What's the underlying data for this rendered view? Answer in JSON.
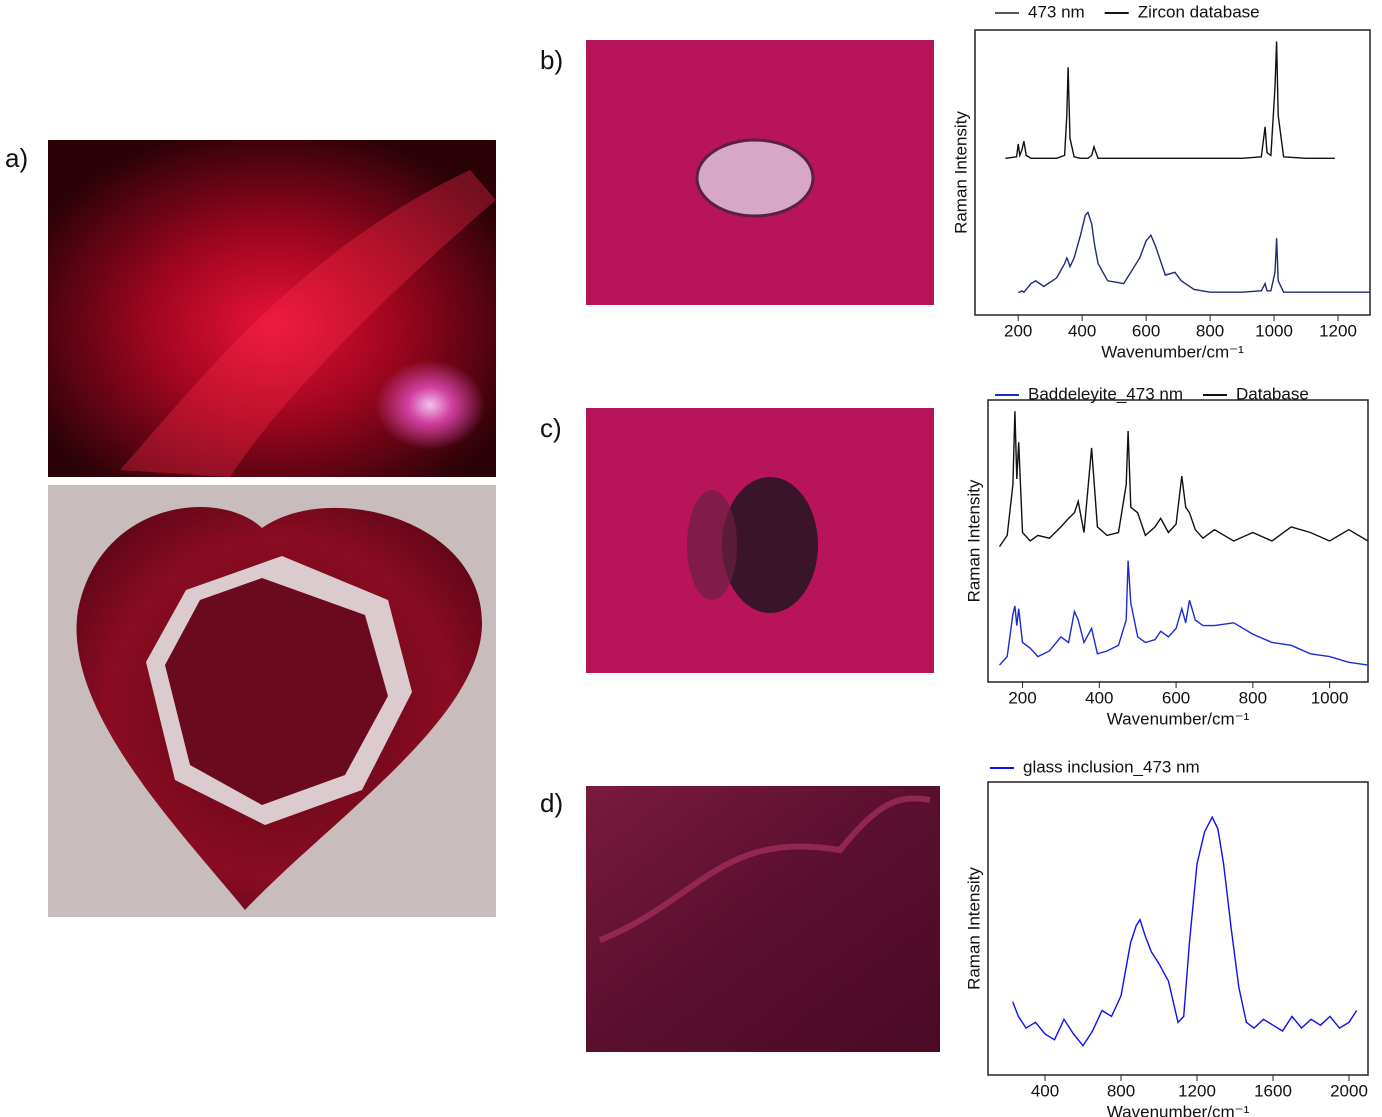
{
  "panel_labels": [
    "a)",
    "b)",
    "c)",
    "d)"
  ],
  "chart_data": [
    {
      "type": "line",
      "x_label": "Wavenumber/cm⁻¹",
      "y_label": "Raman Intensity",
      "xlim": [
        65,
        1300
      ],
      "ylim": [
        0,
        100
      ],
      "xticks": [
        200,
        400,
        600,
        800,
        1000,
        1200
      ],
      "x": [
        160,
        195,
        200,
        205,
        212,
        218,
        225,
        240,
        255,
        280,
        320,
        345,
        352,
        356,
        362,
        375,
        395,
        410,
        418,
        430,
        437,
        440,
        450,
        480,
        530,
        580,
        600,
        615,
        630,
        660,
        690,
        710,
        750,
        800,
        900,
        960,
        972,
        978,
        990,
        1003,
        1008,
        1013,
        1030,
        1100,
        1190,
        1250,
        1300
      ],
      "series": [
        {
          "name": "473 nm",
          "color": "#1f2a7a",
          "legend_color": "#555555",
          "values": [
            null,
            null,
            8,
            8,
            8.5,
            8,
            9,
            11,
            12,
            10,
            13,
            18,
            20,
            19,
            17,
            20,
            28,
            35,
            36,
            32,
            26,
            24,
            18,
            12,
            11,
            20,
            26,
            28,
            24,
            14,
            15,
            12,
            9,
            8,
            8,
            8.5,
            11,
            8.5,
            8.5,
            15,
            27,
            12,
            8,
            8,
            8,
            8,
            8
          ]
        },
        {
          "name": "Zircon database",
          "color": "#111111",
          "values": [
            55,
            55.5,
            60,
            56,
            58,
            61,
            56,
            55,
            55,
            55,
            55,
            56,
            70,
            87,
            62,
            55.5,
            55,
            55,
            55,
            56,
            59,
            58,
            55,
            55,
            55,
            55,
            55,
            55,
            55,
            55,
            55,
            55,
            55,
            55,
            55,
            55.5,
            66,
            57,
            56,
            80,
            96,
            70,
            55.5,
            55,
            55,
            null,
            null
          ]
        }
      ]
    },
    {
      "type": "line",
      "x_label": "Wavenumber/cm⁻¹",
      "y_label": "Raman Intensity",
      "xlim": [
        110,
        1100
      ],
      "ylim": [
        0,
        100
      ],
      "xticks": [
        200,
        400,
        600,
        800,
        1000
      ],
      "x": [
        140,
        160,
        175,
        180,
        185,
        190,
        200,
        220,
        240,
        270,
        300,
        320,
        335,
        345,
        360,
        380,
        395,
        420,
        450,
        470,
        475,
        482,
        500,
        520,
        545,
        560,
        580,
        600,
        615,
        625,
        635,
        650,
        670,
        700,
        750,
        800,
        850,
        900,
        950,
        1000,
        1050,
        1100
      ],
      "series": [
        {
          "name": "Baddeleyite_473 nm",
          "color": "#1a2bd6",
          "values": [
            6,
            9,
            24,
            27,
            20,
            26,
            14,
            12,
            9,
            11,
            16,
            14,
            25,
            22,
            14,
            19,
            10,
            11,
            13,
            22,
            43,
            28,
            16,
            14,
            15,
            18,
            16,
            19,
            26,
            21,
            29,
            22,
            20,
            20,
            21,
            17,
            14,
            13,
            10,
            9,
            7,
            6
          ]
        },
        {
          "name": "Database",
          "color": "#111111",
          "values": [
            48,
            52,
            70,
            96,
            72,
            85,
            53,
            50,
            52,
            51,
            55,
            58,
            60,
            64,
            53,
            83,
            55,
            52,
            53,
            70,
            89,
            62,
            60,
            52,
            55,
            58,
            53,
            56,
            73,
            62,
            60,
            54,
            51,
            54,
            50,
            53,
            50,
            55,
            53,
            50,
            54,
            50
          ]
        }
      ]
    },
    {
      "type": "line",
      "x_label": "Wavenumber/cm⁻¹",
      "y_label": "Raman Intensity",
      "xlim": [
        100,
        2100
      ],
      "ylim": [
        0,
        100
      ],
      "xticks": [
        400,
        800,
        1200,
        1600,
        2000
      ],
      "x": [
        230,
        260,
        300,
        350,
        400,
        450,
        500,
        550,
        600,
        650,
        700,
        750,
        800,
        850,
        880,
        900,
        930,
        960,
        1000,
        1050,
        1100,
        1130,
        1160,
        1200,
        1240,
        1280,
        1310,
        1340,
        1380,
        1420,
        1460,
        1500,
        1550,
        1600,
        1650,
        1700,
        1750,
        1800,
        1850,
        1900,
        1950,
        2000,
        2040
      ],
      "series": [
        {
          "name": "glass inclusion_473 nm",
          "color": "#1010ee",
          "values": [
            25,
            20,
            16,
            18,
            14,
            12,
            19,
            14,
            10,
            15,
            22,
            20,
            27,
            45,
            51,
            53,
            47,
            42,
            38,
            32,
            18,
            20,
            45,
            72,
            83,
            88,
            84,
            72,
            50,
            30,
            18,
            16,
            19,
            17,
            15,
            20,
            16,
            19,
            17,
            20,
            16,
            18,
            22
          ]
        }
      ]
    }
  ]
}
